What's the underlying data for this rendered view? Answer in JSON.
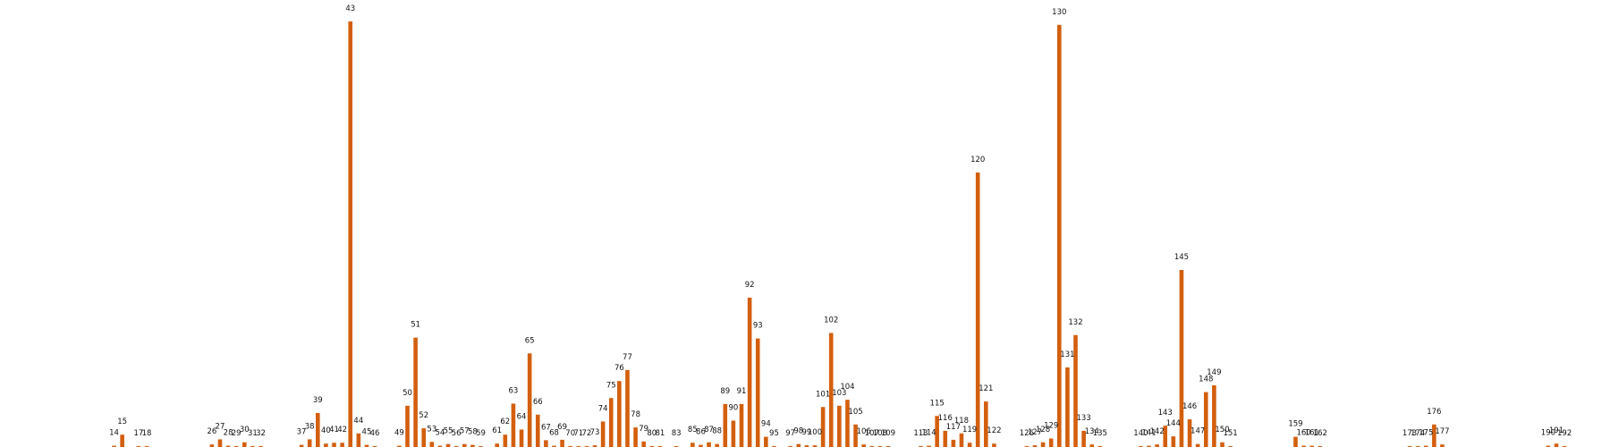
{
  "chart_data": {
    "type": "bar",
    "bar_color": "#d35f0e",
    "title": "",
    "xlabel": "",
    "ylabel": "",
    "grid": false,
    "legend": "none",
    "x_range": [
      0,
      195
    ],
    "ylim": [
      0,
      100
    ],
    "bars": [
      {
        "x": 14,
        "label": "14",
        "value": 0.3
      },
      {
        "x": 15,
        "label": "15",
        "value": 2.9
      },
      {
        "x": 17,
        "label": "17",
        "value": 0.1
      },
      {
        "x": 18,
        "label": "18",
        "value": 0.1
      },
      {
        "x": 26,
        "label": "26",
        "value": 0.6
      },
      {
        "x": 27,
        "label": "27",
        "value": 1.8
      },
      {
        "x": 28,
        "label": "28",
        "value": 0.3
      },
      {
        "x": 29,
        "label": "29",
        "value": 0.1
      },
      {
        "x": 30,
        "label": "30",
        "value": 1.1
      },
      {
        "x": 31,
        "label": "31",
        "value": 0.1
      },
      {
        "x": 32,
        "label": "32",
        "value": 0.1
      },
      {
        "x": 37,
        "label": "37",
        "value": 0.5
      },
      {
        "x": 38,
        "label": "38",
        "value": 1.8
      },
      {
        "x": 39,
        "label": "39",
        "value": 8.0
      },
      {
        "x": 40,
        "label": "40",
        "value": 0.8
      },
      {
        "x": 41,
        "label": "41",
        "value": 1.0
      },
      {
        "x": 42,
        "label": "42",
        "value": 1.0
      },
      {
        "x": 43,
        "label": "43",
        "value": 100
      },
      {
        "x": 44,
        "label": "44",
        "value": 3.2
      },
      {
        "x": 45,
        "label": "45",
        "value": 0.5
      },
      {
        "x": 46,
        "label": "46",
        "value": 0.1
      },
      {
        "x": 49,
        "label": "49",
        "value": 0.3
      },
      {
        "x": 50,
        "label": "50",
        "value": 9.7
      },
      {
        "x": 51,
        "label": "51",
        "value": 25.7
      },
      {
        "x": 52,
        "label": "52",
        "value": 4.4
      },
      {
        "x": 53,
        "label": "53",
        "value": 1.2
      },
      {
        "x": 54,
        "label": "54",
        "value": 0.3
      },
      {
        "x": 55,
        "label": "55",
        "value": 0.7
      },
      {
        "x": 56,
        "label": "56",
        "value": 0.1
      },
      {
        "x": 57,
        "label": "57",
        "value": 0.7
      },
      {
        "x": 58,
        "label": "58",
        "value": 0.5
      },
      {
        "x": 59,
        "label": "59",
        "value": 0.1
      },
      {
        "x": 61,
        "label": "61",
        "value": 0.8
      },
      {
        "x": 62,
        "label": "62",
        "value": 2.9
      },
      {
        "x": 63,
        "label": "63",
        "value": 10.2
      },
      {
        "x": 64,
        "label": "64",
        "value": 4.1
      },
      {
        "x": 65,
        "label": "65",
        "value": 22.0
      },
      {
        "x": 66,
        "label": "66",
        "value": 7.6
      },
      {
        "x": 67,
        "label": "67",
        "value": 1.6
      },
      {
        "x": 68,
        "label": "68",
        "value": 0.3
      },
      {
        "x": 69,
        "label": "69",
        "value": 1.7
      },
      {
        "x": 70,
        "label": "70",
        "value": 0.2
      },
      {
        "x": 71,
        "label": "71",
        "value": 0.2
      },
      {
        "x": 72,
        "label": "72",
        "value": 0.1
      },
      {
        "x": 73,
        "label": "73",
        "value": 0.4
      },
      {
        "x": 74,
        "label": "74",
        "value": 6.0
      },
      {
        "x": 75,
        "label": "75",
        "value": 11.5
      },
      {
        "x": 76,
        "label": "76",
        "value": 15.5
      },
      {
        "x": 77,
        "label": "77",
        "value": 18.1
      },
      {
        "x": 78,
        "label": "78",
        "value": 4.6
      },
      {
        "x": 79,
        "label": "79",
        "value": 1.3
      },
      {
        "x": 80,
        "label": "80",
        "value": 0.1
      },
      {
        "x": 81,
        "label": "81",
        "value": 0.1
      },
      {
        "x": 83,
        "label": "83",
        "value": 0.1
      },
      {
        "x": 85,
        "label": "85",
        "value": 1.0
      },
      {
        "x": 86,
        "label": "86",
        "value": 0.5
      },
      {
        "x": 87,
        "label": "87",
        "value": 1.1
      },
      {
        "x": 88,
        "label": "88",
        "value": 0.7
      },
      {
        "x": 89,
        "label": "89",
        "value": 10.1
      },
      {
        "x": 90,
        "label": "90",
        "value": 6.2
      },
      {
        "x": 91,
        "label": "91",
        "value": 10.1
      },
      {
        "x": 92,
        "label": "92",
        "value": 35.1
      },
      {
        "x": 93,
        "label": "93",
        "value": 25.5
      },
      {
        "x": 94,
        "label": "94",
        "value": 2.4
      },
      {
        "x": 95,
        "label": "95",
        "value": 0.2
      },
      {
        "x": 97,
        "label": "97",
        "value": 0.2
      },
      {
        "x": 98,
        "label": "98",
        "value": 0.7
      },
      {
        "x": 99,
        "label": "99",
        "value": 0.4
      },
      {
        "x": 100,
        "label": "100",
        "value": 0.4
      },
      {
        "x": 101,
        "label": "101",
        "value": 9.4
      },
      {
        "x": 102,
        "label": "102",
        "value": 26.8
      },
      {
        "x": 103,
        "label": "103",
        "value": 9.7
      },
      {
        "x": 104,
        "label": "104",
        "value": 11.1
      },
      {
        "x": 105,
        "label": "105",
        "value": 5.3
      },
      {
        "x": 106,
        "label": "106",
        "value": 0.6
      },
      {
        "x": 107,
        "label": "107",
        "value": 0.1
      },
      {
        "x": 108,
        "label": "108",
        "value": 0.1
      },
      {
        "x": 109,
        "label": "109",
        "value": 0.1
      },
      {
        "x": 113,
        "label": "113",
        "value": 0.2
      },
      {
        "x": 114,
        "label": "114",
        "value": 0.3
      },
      {
        "x": 115,
        "label": "115",
        "value": 7.3
      },
      {
        "x": 116,
        "label": "116",
        "value": 3.8
      },
      {
        "x": 117,
        "label": "117",
        "value": 1.7
      },
      {
        "x": 118,
        "label": "118",
        "value": 3.2
      },
      {
        "x": 119,
        "label": "119",
        "value": 1.0
      },
      {
        "x": 120,
        "label": "120",
        "value": 64.5
      },
      {
        "x": 121,
        "label": "121",
        "value": 10.7
      },
      {
        "x": 122,
        "label": "122",
        "value": 0.8
      },
      {
        "x": 126,
        "label": "126",
        "value": 0.1
      },
      {
        "x": 127,
        "label": "127",
        "value": 0.4
      },
      {
        "x": 128,
        "label": "128",
        "value": 1.1
      },
      {
        "x": 129,
        "label": "129",
        "value": 2.0
      },
      {
        "x": 130,
        "label": "130",
        "value": 99.2
      },
      {
        "x": 131,
        "label": "131",
        "value": 18.7
      },
      {
        "x": 132,
        "label": "132",
        "value": 26.3
      },
      {
        "x": 133,
        "label": "133",
        "value": 3.8
      },
      {
        "x": 134,
        "label": "134",
        "value": 0.6
      },
      {
        "x": 135,
        "label": "135",
        "value": 0.2
      },
      {
        "x": 140,
        "label": "140",
        "value": 0.1
      },
      {
        "x": 141,
        "label": "141",
        "value": 0.3
      },
      {
        "x": 142,
        "label": "142",
        "value": 0.6
      },
      {
        "x": 143,
        "label": "143",
        "value": 5.0
      },
      {
        "x": 144,
        "label": "144",
        "value": 2.5
      },
      {
        "x": 145,
        "label": "145",
        "value": 41.6
      },
      {
        "x": 146,
        "label": "146",
        "value": 6.5
      },
      {
        "x": 147,
        "label": "147",
        "value": 0.7
      },
      {
        "x": 148,
        "label": "148",
        "value": 12.9
      },
      {
        "x": 149,
        "label": "149",
        "value": 14.5
      },
      {
        "x": 150,
        "label": "150",
        "value": 1.1
      },
      {
        "x": 151,
        "label": "151",
        "value": 0.2
      },
      {
        "x": 159,
        "label": "159",
        "value": 2.4
      },
      {
        "x": 160,
        "label": "160",
        "value": 0.3
      },
      {
        "x": 161,
        "label": "161",
        "value": 0.3
      },
      {
        "x": 162,
        "label": "162",
        "value": 0.1
      },
      {
        "x": 173,
        "label": "173",
        "value": 0.1
      },
      {
        "x": 174,
        "label": "174",
        "value": 0.1
      },
      {
        "x": 175,
        "label": "175",
        "value": 0.3
      },
      {
        "x": 176,
        "label": "176",
        "value": 5.3
      },
      {
        "x": 177,
        "label": "177",
        "value": 0.6
      },
      {
        "x": 190,
        "label": "190",
        "value": 0.3
      },
      {
        "x": 191,
        "label": "191",
        "value": 0.8
      },
      {
        "x": 192,
        "label": "192",
        "value": 0.1
      }
    ]
  }
}
